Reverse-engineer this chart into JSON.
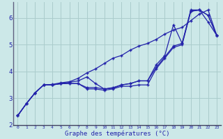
{
  "xlabel": "Graphe des températures (°C)",
  "background_color": "#cce8e8",
  "grid_color": "#aacccc",
  "line_color": "#2222aa",
  "x": [
    0,
    1,
    2,
    3,
    4,
    5,
    6,
    7,
    8,
    9,
    10,
    11,
    12,
    13,
    14,
    15,
    16,
    17,
    18,
    19,
    20,
    21,
    22,
    23
  ],
  "line1_y": [
    2.35,
    2.8,
    3.2,
    3.5,
    3.5,
    3.55,
    3.55,
    3.55,
    3.35,
    3.35,
    3.3,
    3.35,
    3.45,
    3.45,
    3.5,
    3.5,
    4.1,
    4.5,
    4.9,
    5.0,
    6.25,
    6.3,
    6.1,
    5.35
  ],
  "line2_y": [
    2.35,
    2.8,
    3.2,
    3.5,
    3.5,
    3.55,
    3.6,
    3.65,
    3.8,
    3.55,
    3.35,
    3.4,
    3.5,
    3.55,
    3.65,
    3.65,
    4.25,
    4.6,
    5.75,
    5.05,
    6.3,
    6.3,
    5.85,
    5.35
  ],
  "line3_y": [
    2.35,
    2.8,
    3.2,
    3.5,
    3.52,
    3.58,
    3.62,
    3.75,
    3.95,
    4.1,
    4.3,
    4.5,
    4.6,
    4.8,
    4.95,
    5.05,
    5.2,
    5.4,
    5.55,
    5.65,
    5.9,
    6.15,
    6.3,
    5.35
  ],
  "line4_y": [
    2.35,
    2.8,
    3.2,
    3.5,
    3.5,
    3.55,
    3.55,
    3.55,
    3.4,
    3.4,
    3.35,
    3.38,
    3.5,
    3.55,
    3.65,
    3.65,
    4.15,
    4.55,
    4.95,
    5.05,
    6.25,
    6.3,
    6.1,
    5.35
  ],
  "ylim": [
    2.0,
    6.6
  ],
  "xlim": [
    -0.5,
    23.5
  ],
  "yticks": [
    2,
    3,
    4,
    5,
    6
  ],
  "xticks": [
    0,
    1,
    2,
    3,
    4,
    5,
    6,
    7,
    8,
    9,
    10,
    11,
    12,
    13,
    14,
    15,
    16,
    17,
    18,
    19,
    20,
    21,
    22,
    23
  ],
  "figsize": [
    3.2,
    2.0
  ],
  "dpi": 100
}
